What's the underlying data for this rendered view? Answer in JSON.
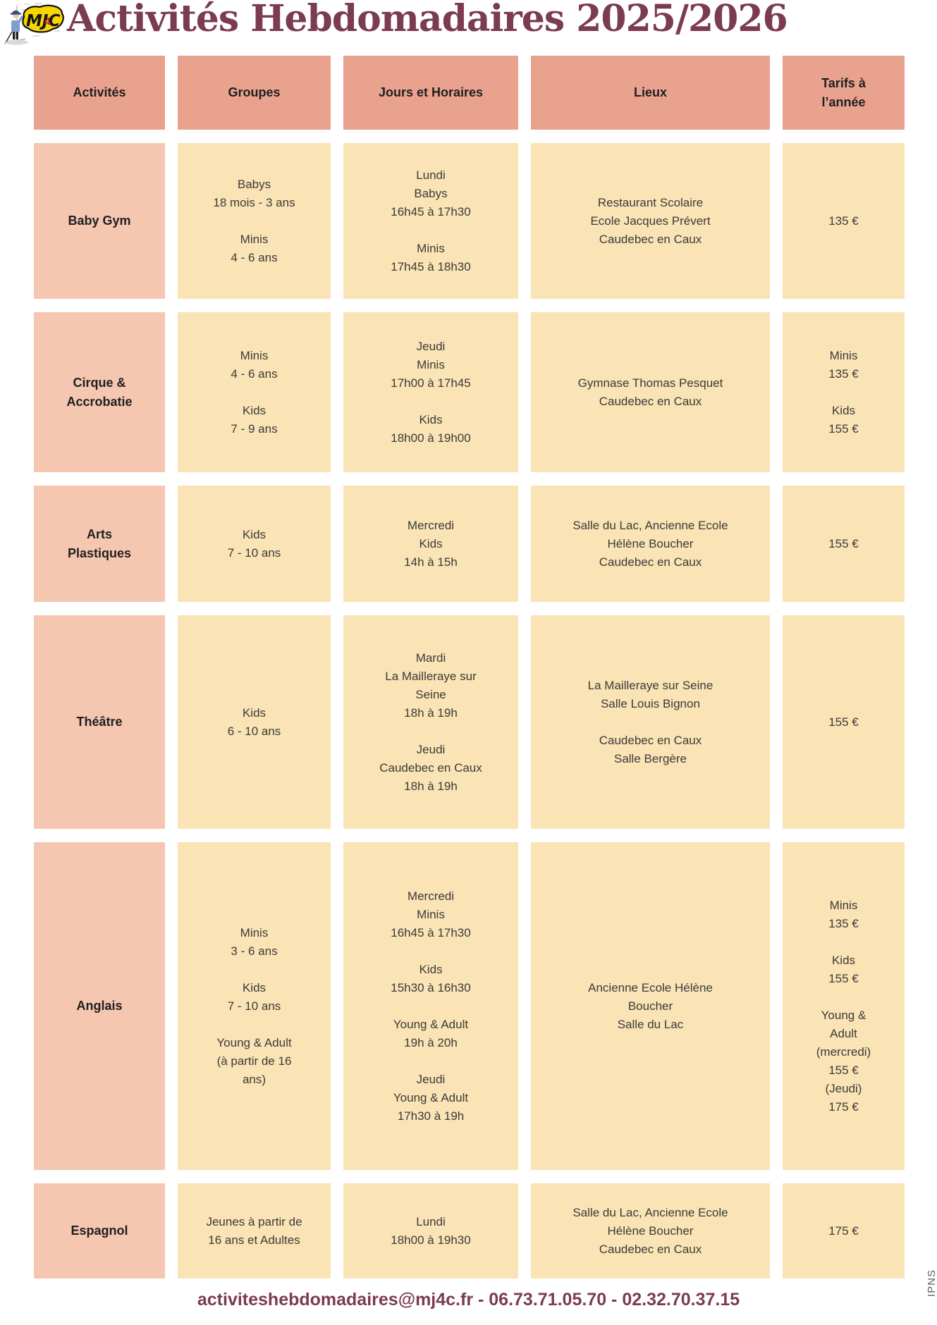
{
  "page": {
    "title": "Activités Hebdomadaires 2025/2026",
    "footer": "activiteshebdomadaires@mj4c.fr - 06.73.71.05.70 - 02.32.70.37.15",
    "side_note": "IPNS",
    "logo": {
      "text": "MJC",
      "accent": "4"
    }
  },
  "colors": {
    "title_maroon": "#7b3b51",
    "header_salmon": "#e9a28e",
    "activity_salmon": "#f5c7b1",
    "cell_peach": "#fae3b4",
    "text_dark": "#3b3b3b",
    "ipns_gray": "#5e5e5e",
    "logo_yellow": "#f6d501",
    "logo_red": "#d02830"
  },
  "table": {
    "header_keys": [
      "activites",
      "groupes",
      "jours-horaires",
      "lieux",
      "tarifs"
    ],
    "headers": [
      [
        "Activités"
      ],
      [
        "Groupes"
      ],
      [
        "Jours et Horaires"
      ],
      [
        "Lieux"
      ],
      [
        "Tarifs à",
        "l’année"
      ]
    ],
    "rows": [
      {
        "activity": [
          "Baby Gym"
        ],
        "groupes": [
          [
            "Babys",
            "18 mois - 3 ans"
          ],
          [
            "Minis",
            "4 - 6 ans"
          ]
        ],
        "jours": [
          [
            "Lundi",
            "Babys",
            "16h45 à 17h30"
          ],
          [
            "Minis",
            "17h45 à 18h30"
          ]
        ],
        "lieux": [
          [
            "Restaurant Scolaire",
            "Ecole Jacques Prévert",
            "Caudebec en Caux"
          ]
        ],
        "tarifs": [
          [
            "135 €"
          ]
        ]
      },
      {
        "activity": [
          "Cirque &",
          "Accrobatie"
        ],
        "groupes": [
          [
            "Minis",
            "4 - 6 ans"
          ],
          [
            "Kids",
            "7 - 9 ans"
          ]
        ],
        "jours": [
          [
            "Jeudi",
            "Minis",
            "17h00 à 17h45"
          ],
          [
            "Kids",
            "18h00 à 19h00"
          ]
        ],
        "lieux": [
          [
            "Gymnase Thomas Pesquet",
            "Caudebec en Caux"
          ]
        ],
        "tarifs": [
          [
            "Minis",
            "135 €"
          ],
          [
            "Kids",
            "155 €"
          ]
        ]
      },
      {
        "activity": [
          "Arts",
          "Plastiques"
        ],
        "groupes": [
          [
            "Kids",
            "7 - 10 ans"
          ]
        ],
        "jours": [
          [
            "Mercredi",
            "Kids",
            "14h à 15h"
          ]
        ],
        "lieux": [
          [
            "Salle du Lac, Ancienne Ecole",
            "Hélène Boucher",
            "Caudebec en Caux"
          ]
        ],
        "tarifs": [
          [
            "155 €"
          ]
        ]
      },
      {
        "activity": [
          "Théâtre"
        ],
        "groupes": [
          [
            "Kids",
            "6 - 10 ans"
          ]
        ],
        "jours": [
          [
            "Mardi",
            "La Mailleraye sur",
            "Seine",
            "18h à 19h"
          ],
          [
            "Jeudi",
            "Caudebec en Caux",
            "18h à 19h"
          ]
        ],
        "lieux": [
          [
            "La Mailleraye sur Seine",
            "Salle Louis Bignon"
          ],
          [
            "Caudebec en Caux",
            "Salle Bergère"
          ]
        ],
        "tarifs": [
          [
            "155 €"
          ]
        ]
      },
      {
        "activity": [
          "Anglais"
        ],
        "groupes": [
          [
            "Minis",
            "3 - 6 ans"
          ],
          [
            "Kids",
            "7 - 10 ans"
          ],
          [
            "Young & Adult",
            "(à partir de 16",
            "ans)"
          ]
        ],
        "jours": [
          [
            "Mercredi",
            "Minis",
            "16h45 à 17h30"
          ],
          [
            "Kids",
            "15h30 à 16h30"
          ],
          [
            "Young & Adult",
            "19h à 20h"
          ],
          [
            "Jeudi",
            "Young & Adult",
            "17h30 à 19h"
          ]
        ],
        "lieux": [
          [
            "Ancienne Ecole Hélène",
            "Boucher",
            "Salle du Lac"
          ]
        ],
        "tarifs": [
          [
            "Minis",
            "135 €"
          ],
          [
            "Kids",
            "155 €"
          ],
          [
            "Young &",
            "Adult",
            "(mercredi)",
            "155 €",
            "(Jeudi)",
            "175 €"
          ]
        ]
      },
      {
        "activity": [
          "Espagnol"
        ],
        "groupes": [
          [
            "Jeunes à partir de",
            "16 ans et Adultes"
          ]
        ],
        "jours": [
          [
            "Lundi",
            "18h00 à 19h30"
          ]
        ],
        "lieux": [
          [
            "Salle du Lac, Ancienne Ecole",
            "Hélène Boucher",
            "Caudebec en Caux"
          ]
        ],
        "tarifs": [
          [
            "175 €"
          ]
        ]
      }
    ]
  }
}
